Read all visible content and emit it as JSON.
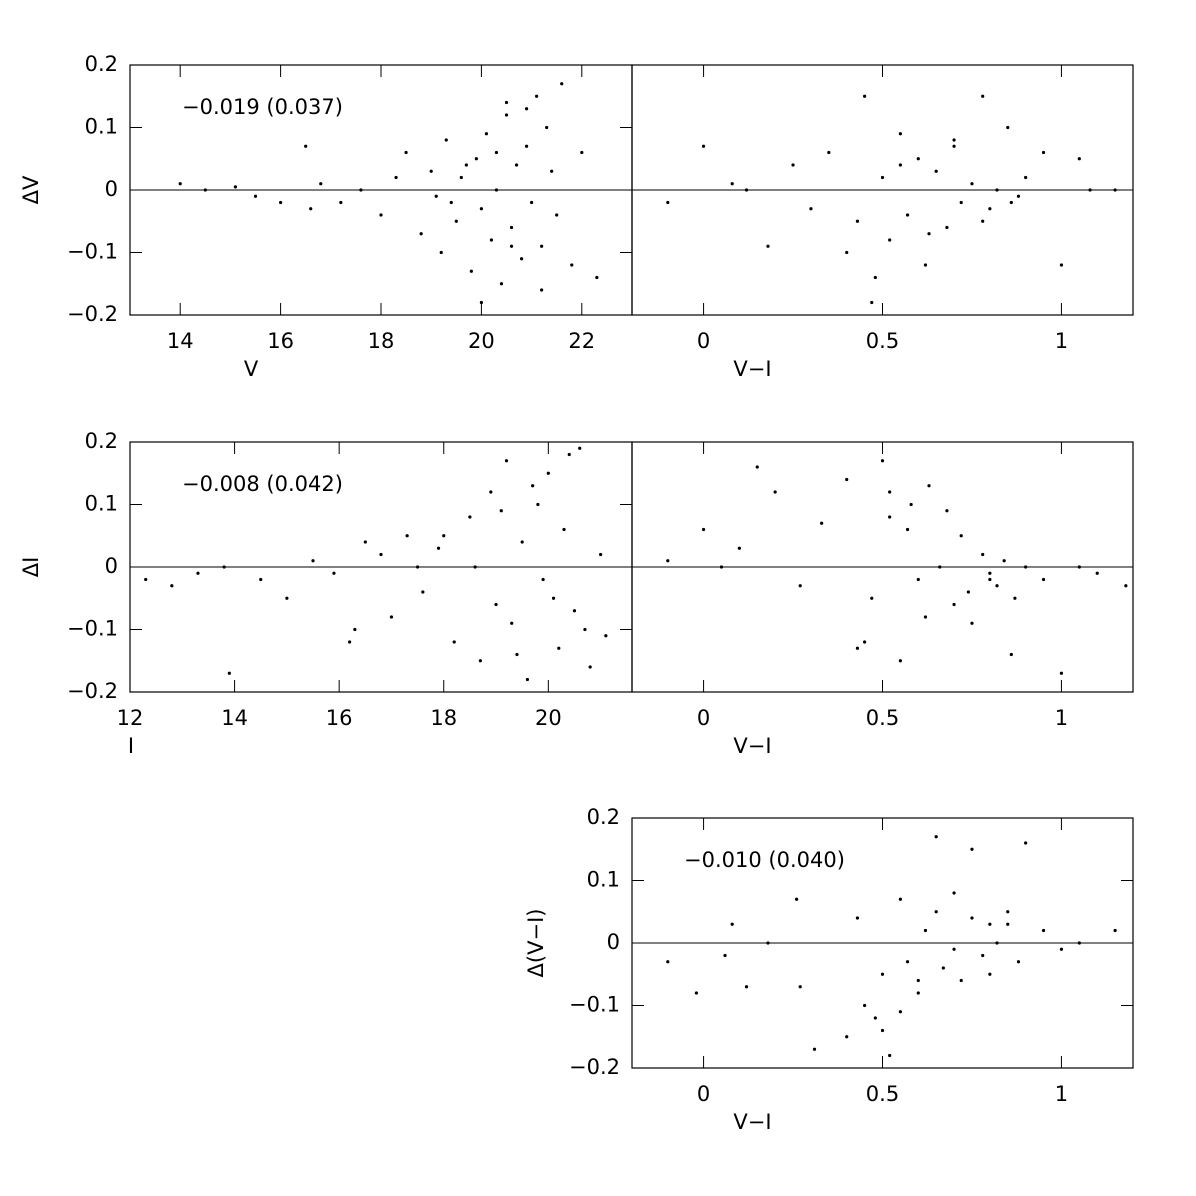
{
  "chart_data": [
    {
      "type": "scatter",
      "xlabel": "V",
      "ylabel": "ΔV",
      "annotation": "−0.019  (0.037)",
      "xlim": [
        13,
        23
      ],
      "ylim": [
        -0.2,
        0.2
      ],
      "hline": 0,
      "xticks": [
        14,
        16,
        18,
        20,
        22
      ],
      "yticks": [
        {
          "value": -0.2,
          "label": "−0.2"
        },
        {
          "value": -0.1,
          "label": "−0.1"
        },
        0,
        0.1,
        0.2
      ],
      "x": [
        14.0,
        14.5,
        15.1,
        15.5,
        16.0,
        16.5,
        16.6,
        16.8,
        17.2,
        17.6,
        18.0,
        18.3,
        18.5,
        18.8,
        19.0,
        19.2,
        19.3,
        19.5,
        19.6,
        19.8,
        19.9,
        20.0,
        20.1,
        20.2,
        20.3,
        20.4,
        20.5,
        20.6,
        20.7,
        20.8,
        20.9,
        21.0,
        21.1,
        21.2,
        21.3,
        21.5,
        21.6,
        21.8,
        22.0,
        22.3,
        19.4,
        19.7,
        20.0,
        20.3,
        20.6,
        20.9,
        21.2,
        19.1,
        20.5,
        21.4
      ],
      "y": [
        0.01,
        0.0,
        0.005,
        -0.01,
        -0.02,
        0.07,
        -0.03,
        0.01,
        -0.02,
        0.0,
        -0.04,
        0.02,
        0.06,
        -0.07,
        0.03,
        -0.1,
        0.08,
        -0.05,
        0.02,
        -0.13,
        0.05,
        -0.03,
        0.09,
        -0.08,
        0.0,
        -0.15,
        0.12,
        -0.06,
        0.04,
        -0.11,
        0.07,
        -0.02,
        0.15,
        -0.09,
        0.1,
        -0.04,
        0.17,
        -0.12,
        0.06,
        -0.14,
        -0.02,
        0.04,
        -0.18,
        0.06,
        -0.09,
        0.13,
        -0.16,
        -0.01,
        0.14,
        0.03
      ]
    },
    {
      "type": "scatter",
      "xlabel": "V−I",
      "xlim": [
        -0.2,
        1.2
      ],
      "ylim": [
        -0.2,
        0.2
      ],
      "hline": 0,
      "xticks": [
        0,
        0.5,
        1
      ],
      "x": [
        -0.1,
        0.0,
        0.08,
        0.12,
        0.18,
        0.25,
        0.3,
        0.35,
        0.4,
        0.43,
        0.45,
        0.48,
        0.5,
        0.52,
        0.55,
        0.57,
        0.6,
        0.62,
        0.65,
        0.68,
        0.7,
        0.72,
        0.75,
        0.78,
        0.8,
        0.82,
        0.85,
        0.88,
        0.9,
        0.95,
        1.0,
        1.05,
        1.08,
        1.15,
        0.47,
        0.55,
        0.63,
        0.7,
        0.78,
        0.86
      ],
      "y": [
        -0.02,
        0.07,
        0.01,
        0.0,
        -0.09,
        0.04,
        -0.03,
        0.06,
        -0.1,
        -0.05,
        0.15,
        -0.14,
        0.02,
        -0.08,
        0.09,
        -0.04,
        0.05,
        -0.12,
        0.03,
        -0.06,
        0.07,
        -0.02,
        0.01,
        0.15,
        -0.03,
        0.0,
        0.1,
        -0.01,
        0.02,
        0.06,
        -0.12,
        0.05,
        0.0,
        0.0,
        -0.18,
        0.04,
        -0.07,
        0.08,
        -0.05,
        -0.02
      ]
    },
    {
      "type": "scatter",
      "xlabel": "I",
      "ylabel": "ΔI",
      "annotation": "−0.008  (0.042)",
      "xlim": [
        12,
        21.6
      ],
      "ylim": [
        -0.2,
        0.2
      ],
      "hline": 0,
      "xticks": [
        12,
        14,
        16,
        18,
        20
      ],
      "yticks": [
        {
          "value": -0.2,
          "label": "−0.2"
        },
        {
          "value": -0.1,
          "label": "−0.1"
        },
        0,
        0.1,
        0.2
      ],
      "x": [
        12.3,
        12.8,
        13.3,
        13.8,
        14.5,
        15.0,
        15.5,
        15.9,
        16.3,
        16.5,
        16.8,
        17.0,
        17.3,
        17.6,
        17.9,
        18.2,
        18.5,
        18.7,
        18.9,
        19.0,
        19.2,
        19.3,
        19.5,
        19.6,
        19.8,
        19.9,
        20.0,
        20.2,
        20.3,
        20.5,
        20.6,
        20.8,
        21.0,
        21.1,
        18.6,
        19.1,
        19.4,
        19.7,
        20.1,
        20.4,
        20.7,
        13.9,
        16.2,
        17.5,
        18.0
      ],
      "y": [
        -0.02,
        -0.03,
        -0.01,
        0.0,
        -0.02,
        -0.05,
        0.01,
        -0.01,
        -0.1,
        0.04,
        0.02,
        -0.08,
        0.05,
        -0.04,
        0.03,
        -0.12,
        0.08,
        -0.15,
        0.12,
        -0.06,
        0.17,
        -0.09,
        0.04,
        -0.18,
        0.1,
        -0.02,
        0.15,
        -0.13,
        0.06,
        -0.07,
        0.19,
        -0.16,
        0.02,
        -0.11,
        0.0,
        0.09,
        -0.14,
        0.13,
        -0.05,
        0.18,
        -0.1,
        -0.17,
        -0.12,
        0.0,
        0.05
      ]
    },
    {
      "type": "scatter",
      "xlabel": "V−I",
      "xlim": [
        -0.2,
        1.2
      ],
      "ylim": [
        -0.2,
        0.2
      ],
      "hline": 0,
      "xticks": [
        0,
        0.5,
        1
      ],
      "x": [
        -0.1,
        0.0,
        0.05,
        0.1,
        0.15,
        0.2,
        0.27,
        0.33,
        0.4,
        0.43,
        0.47,
        0.5,
        0.52,
        0.55,
        0.58,
        0.6,
        0.63,
        0.66,
        0.7,
        0.72,
        0.75,
        0.78,
        0.8,
        0.82,
        0.84,
        0.87,
        0.9,
        0.95,
        1.0,
        1.05,
        1.1,
        1.18,
        0.52,
        0.57,
        0.62,
        0.68,
        0.74,
        0.8,
        0.86,
        0.45
      ],
      "y": [
        0.01,
        0.06,
        0.0,
        0.03,
        0.16,
        0.12,
        -0.03,
        0.07,
        0.14,
        -0.13,
        -0.05,
        0.17,
        0.08,
        -0.15,
        0.1,
        -0.02,
        0.13,
        0.0,
        -0.06,
        0.05,
        -0.09,
        0.02,
        -0.01,
        -0.03,
        0.01,
        -0.05,
        0.0,
        -0.02,
        -0.17,
        0.0,
        -0.01,
        -0.03,
        0.12,
        0.06,
        -0.08,
        0.09,
        -0.04,
        -0.02,
        -0.14,
        -0.12
      ]
    },
    {
      "type": "scatter",
      "xlabel": "V−I",
      "ylabel": "Δ(V−I)",
      "annotation": "−0.010  (0.040)",
      "xlim": [
        -0.2,
        1.2
      ],
      "ylim": [
        -0.2,
        0.2
      ],
      "hline": 0,
      "xticks": [
        0,
        0.5,
        1
      ],
      "yticks": [
        {
          "value": -0.2,
          "label": "−0.2"
        },
        {
          "value": -0.1,
          "label": "−0.1"
        },
        0,
        0.1,
        0.2
      ],
      "x": [
        -0.1,
        -0.02,
        0.06,
        0.08,
        0.12,
        0.18,
        0.26,
        0.27,
        0.31,
        0.4,
        0.43,
        0.45,
        0.48,
        0.5,
        0.52,
        0.55,
        0.57,
        0.6,
        0.62,
        0.65,
        0.67,
        0.7,
        0.72,
        0.75,
        0.78,
        0.8,
        0.82,
        0.85,
        0.88,
        0.9,
        0.95,
        1.0,
        1.05,
        1.15,
        0.5,
        0.55,
        0.6,
        0.65,
        0.7,
        0.75,
        0.8,
        0.85
      ],
      "y": [
        -0.03,
        -0.08,
        -0.02,
        0.03,
        -0.07,
        0.0,
        0.07,
        -0.07,
        -0.17,
        -0.15,
        0.04,
        -0.1,
        -0.12,
        -0.05,
        -0.18,
        0.07,
        -0.03,
        -0.08,
        0.02,
        0.17,
        -0.04,
        0.08,
        -0.06,
        0.15,
        -0.02,
        0.03,
        0.0,
        0.05,
        -0.03,
        0.16,
        0.02,
        -0.01,
        0.0,
        0.02,
        -0.14,
        -0.11,
        -0.06,
        0.05,
        -0.01,
        0.04,
        -0.05,
        0.03
      ]
    }
  ]
}
